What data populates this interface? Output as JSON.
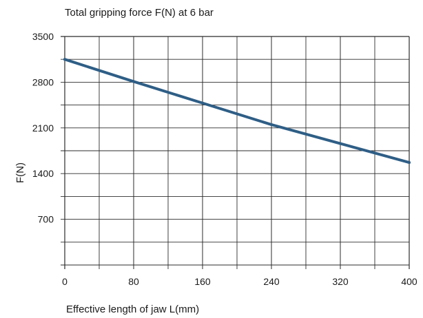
{
  "chart_data": {
    "type": "line",
    "title": "Total gripping force F(N) at 6 bar",
    "xlabel": "Effective length of jaw L(mm)",
    "ylabel": "F(N)",
    "xlim": [
      0,
      400
    ],
    "ylim": [
      0,
      3500
    ],
    "x_ticks": [
      "0",
      "80",
      "160",
      "240",
      "320",
      "400"
    ],
    "y_ticks": [
      "700",
      "1400",
      "2100",
      "2800",
      "3500"
    ],
    "x_tick_values": [
      0,
      80,
      160,
      240,
      320,
      400
    ],
    "y_tick_values": [
      700,
      1400,
      2100,
      2800,
      3500
    ],
    "x_grid_step": 40,
    "y_grid_step": 350,
    "grid": true,
    "colors": {
      "series_line": "#2e5e86",
      "grid": "#2b2b2b",
      "text": "#1a1a1a"
    },
    "series": [
      {
        "x": [
          0,
          80,
          160,
          240,
          320,
          400
        ],
        "values": [
          3150,
          2810,
          2480,
          2150,
          1860,
          1570
        ]
      }
    ]
  }
}
